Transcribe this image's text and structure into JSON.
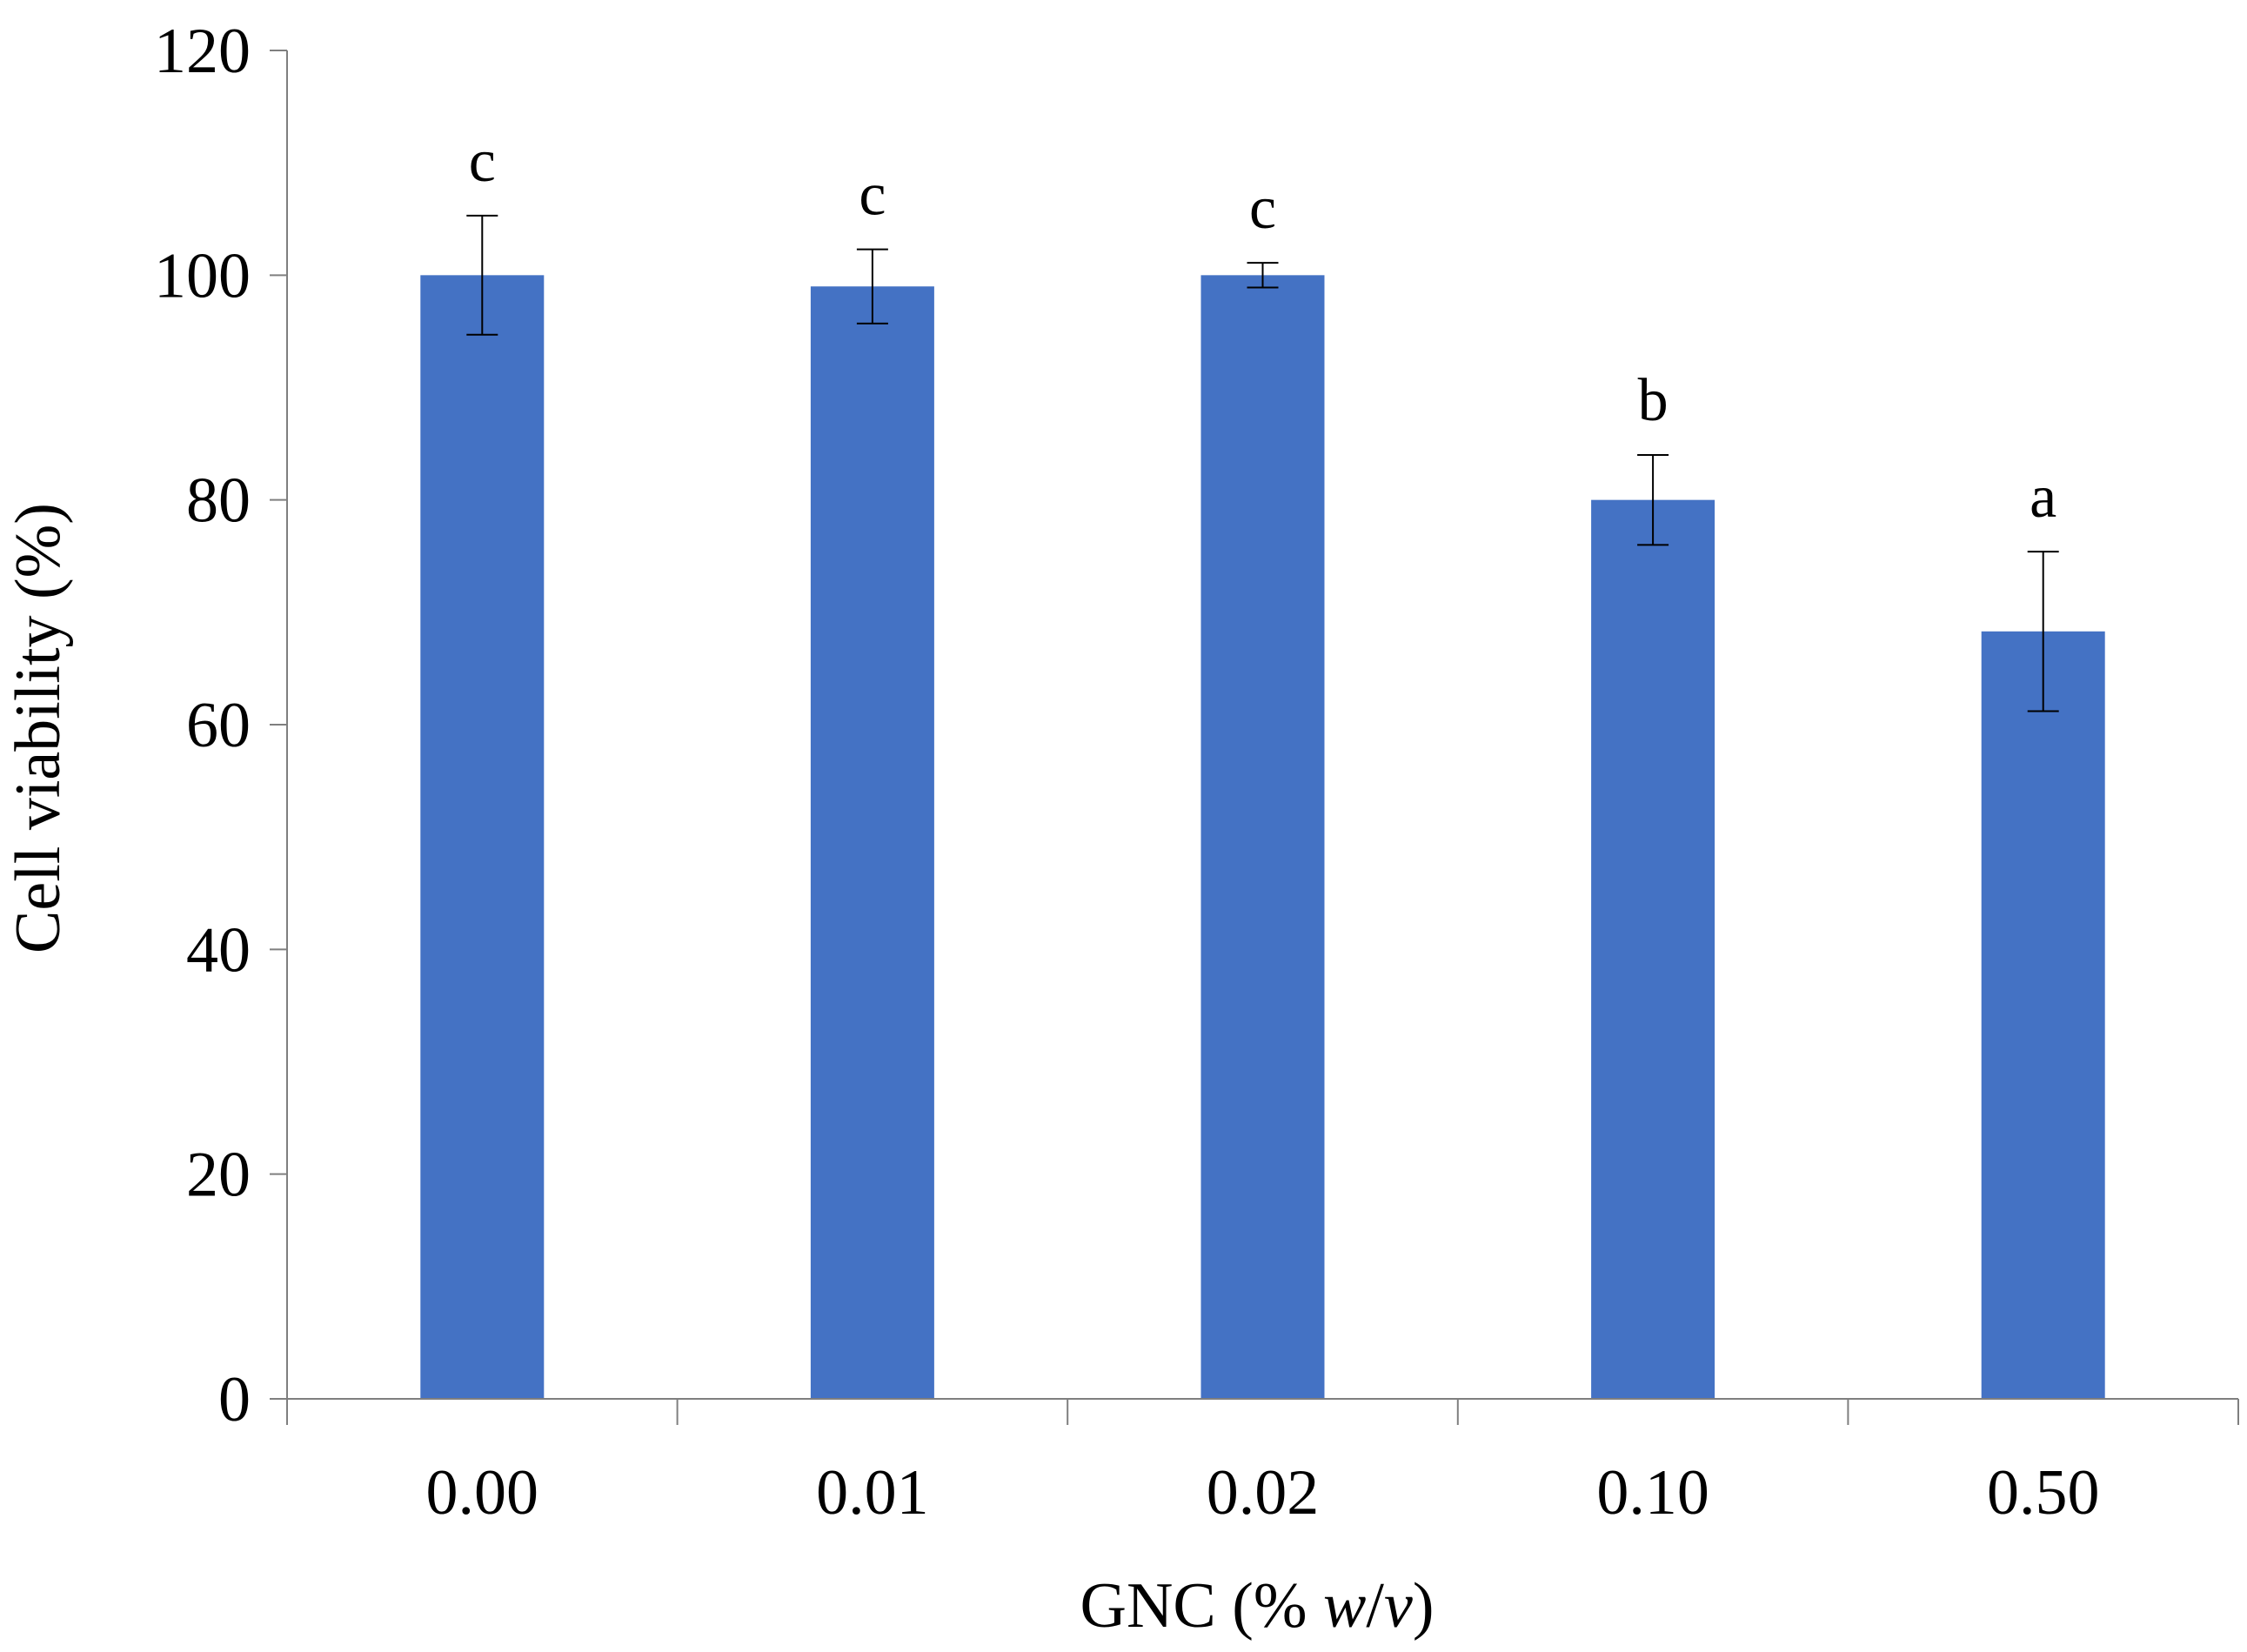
{
  "chart_data": {
    "type": "bar",
    "title": "",
    "xlabel": "GNC (% w/v)",
    "xlabel_parts": {
      "prefix": "GNC (% ",
      "italic_1": "w",
      "slash": "/",
      "italic_2": "v",
      "suffix": ")"
    },
    "ylabel": "Cell viability (%)",
    "ylim": [
      0,
      120
    ],
    "yticks": [
      0,
      20,
      40,
      60,
      80,
      100,
      120
    ],
    "categories": [
      "0.00",
      "0.01",
      "0.02",
      "0.10",
      "0.50"
    ],
    "series": [
      {
        "values": [
          100,
          99,
          100,
          80,
          68.3
        ],
        "errors": [
          5.3,
          3.3,
          1.1,
          4.0,
          7.1
        ],
        "significance": [
          "c",
          "c",
          "c",
          "b",
          "a"
        ]
      }
    ],
    "bar_color": "#4472C4",
    "grid": false,
    "legend": "none"
  }
}
